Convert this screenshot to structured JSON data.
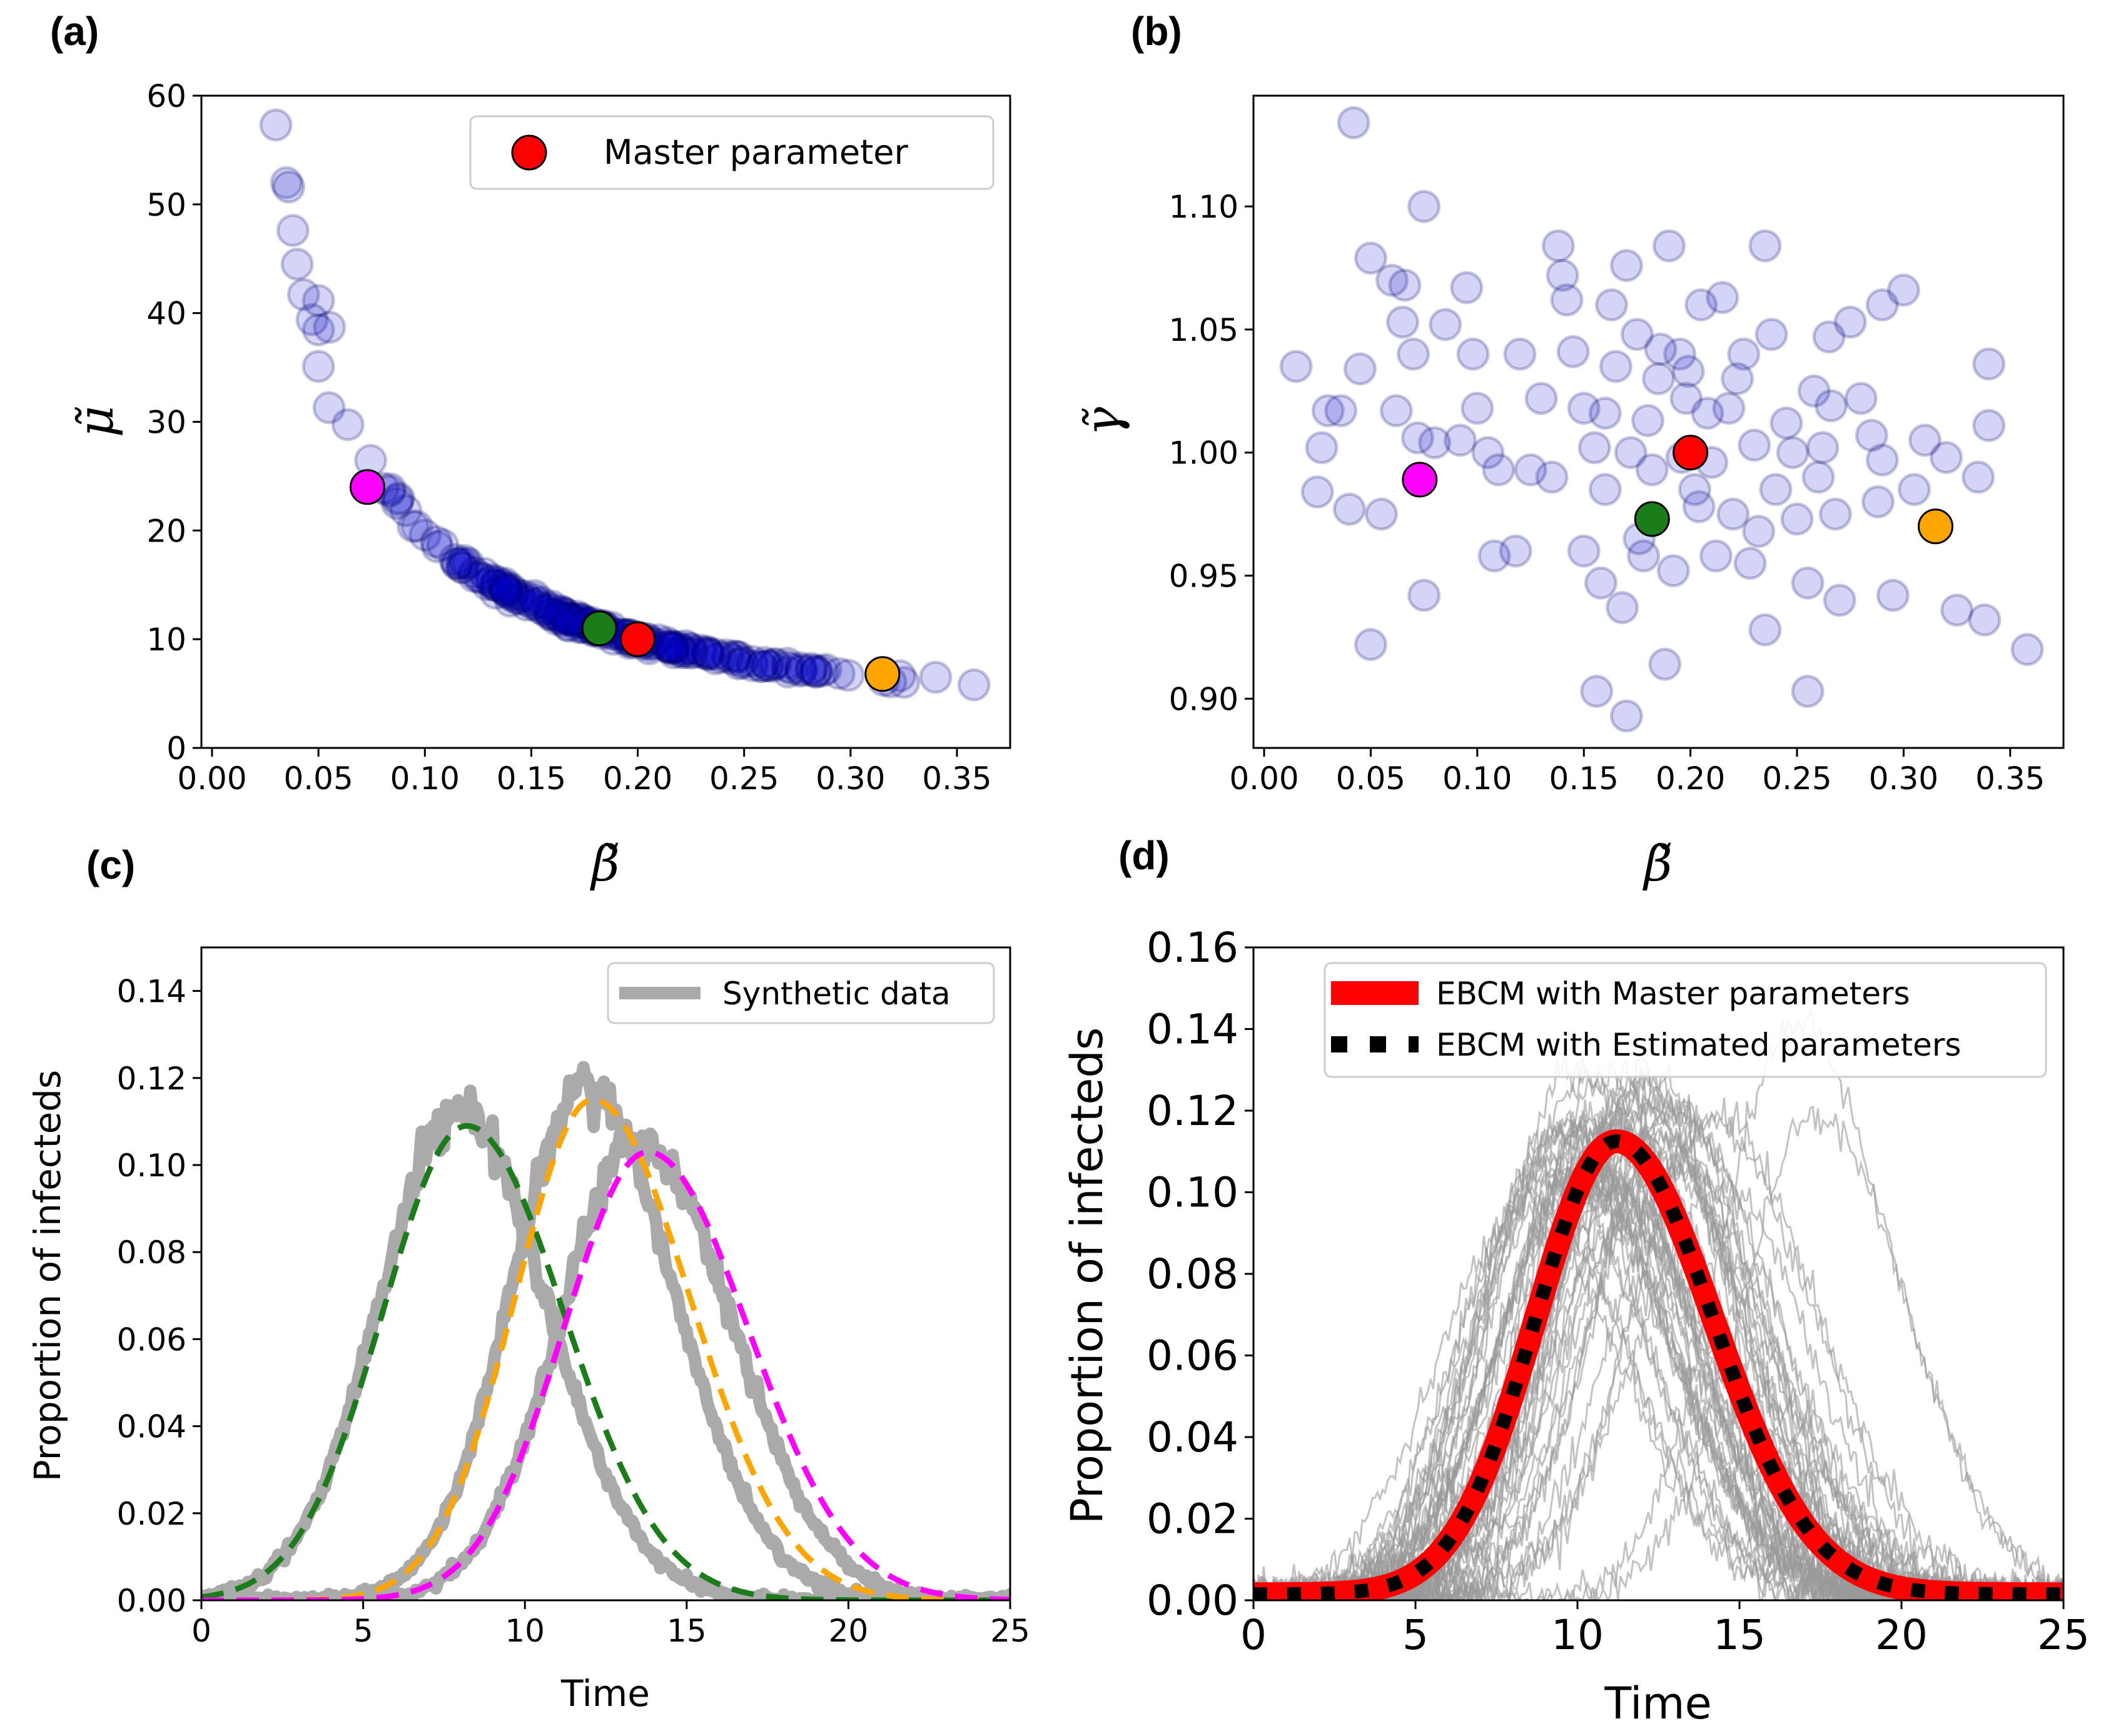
{
  "chart_data": [
    {
      "panel": "(a)",
      "type": "scatter",
      "xlabel": "β̃",
      "ylabel": "μ̃",
      "xlim": [
        -0.005,
        0.375
      ],
      "ylim": [
        0,
        60
      ],
      "xticks": [
        "0.00",
        "0.05",
        "0.10",
        "0.15",
        "0.20",
        "0.25",
        "0.30",
        "0.35"
      ],
      "yticks": [
        "0",
        "10",
        "20",
        "30",
        "40",
        "50",
        "60"
      ],
      "legend": [
        "Master parameter"
      ],
      "point_color": "#0000cc",
      "highlight": [
        {
          "name": "magenta",
          "x": 0.073,
          "y": 24.0,
          "color": "#ff00ff"
        },
        {
          "name": "green",
          "x": 0.182,
          "y": 11.0,
          "color": "#1a7d1a"
        },
        {
          "name": "red",
          "x": 0.2,
          "y": 10.0,
          "color": "#ff0000"
        },
        {
          "name": "orange",
          "x": 0.315,
          "y": 6.8,
          "color": "#ffa500"
        }
      ],
      "extreme_points": [
        {
          "x": 0.03,
          "y": 57.3
        },
        {
          "x": 0.035,
          "y": 52.0
        },
        {
          "x": 0.036,
          "y": 51.6
        },
        {
          "x": 0.038,
          "y": 47.6
        },
        {
          "x": 0.04,
          "y": 44.5
        },
        {
          "x": 0.043,
          "y": 41.7
        },
        {
          "x": 0.047,
          "y": 39.4
        },
        {
          "x": 0.05,
          "y": 35.1
        },
        {
          "x": 0.055,
          "y": 31.3
        },
        {
          "x": 0.34,
          "y": 6.5
        },
        {
          "x": 0.358,
          "y": 5.8
        }
      ],
      "trend": "mu ≈ 2.0 / beta"
    },
    {
      "panel": "(b)",
      "type": "scatter",
      "xlabel": "β̃",
      "ylabel": "γ̃",
      "xlim": [
        -0.005,
        0.375
      ],
      "ylim": [
        0.88,
        1.145
      ],
      "xticks": [
        "0.00",
        "0.05",
        "0.10",
        "0.15",
        "0.20",
        "0.25",
        "0.30",
        "0.35"
      ],
      "yticks": [
        "0.90",
        "0.95",
        "1.00",
        "1.05",
        "1.10"
      ],
      "point_color": "#0000cc",
      "highlight": [
        {
          "name": "magenta",
          "x": 0.073,
          "y": 0.989,
          "color": "#ff00ff"
        },
        {
          "name": "green",
          "x": 0.182,
          "y": 0.973,
          "color": "#1a7d1a"
        },
        {
          "name": "red",
          "x": 0.2,
          "y": 1.0,
          "color": "#ff0000"
        },
        {
          "name": "orange",
          "x": 0.315,
          "y": 0.97,
          "color": "#ffa500"
        }
      ],
      "points": [
        [
          0.042,
          1.134
        ],
        [
          0.075,
          1.1
        ],
        [
          0.015,
          1.035
        ],
        [
          0.025,
          0.984
        ],
        [
          0.027,
          1.002
        ],
        [
          0.03,
          1.017
        ],
        [
          0.04,
          0.977
        ],
        [
          0.045,
          1.034
        ],
        [
          0.05,
          1.079
        ],
        [
          0.055,
          0.975
        ],
        [
          0.06,
          1.07
        ],
        [
          0.065,
          1.053
        ],
        [
          0.066,
          1.068
        ],
        [
          0.07,
          1.04
        ],
        [
          0.072,
          1.006
        ],
        [
          0.075,
          0.942
        ],
        [
          0.05,
          0.922
        ],
        [
          0.085,
          1.052
        ],
        [
          0.095,
          1.067
        ],
        [
          0.098,
          1.04
        ],
        [
          0.1,
          1.018
        ],
        [
          0.105,
          1.0
        ],
        [
          0.11,
          0.993
        ],
        [
          0.12,
          1.04
        ],
        [
          0.125,
          0.993
        ],
        [
          0.13,
          1.022
        ],
        [
          0.135,
          0.99
        ],
        [
          0.138,
          1.084
        ],
        [
          0.14,
          1.072
        ],
        [
          0.145,
          1.041
        ],
        [
          0.15,
          1.018
        ],
        [
          0.15,
          0.96
        ],
        [
          0.155,
          1.002
        ],
        [
          0.158,
          0.947
        ],
        [
          0.16,
          0.985
        ],
        [
          0.163,
          1.06
        ],
        [
          0.165,
          1.035
        ],
        [
          0.168,
          0.937
        ],
        [
          0.17,
          1.076
        ],
        [
          0.172,
          1.0
        ],
        [
          0.175,
          1.048
        ],
        [
          0.178,
          0.958
        ],
        [
          0.18,
          1.013
        ],
        [
          0.185,
          1.03
        ],
        [
          0.188,
          0.914
        ],
        [
          0.19,
          1.084
        ],
        [
          0.192,
          0.952
        ],
        [
          0.195,
          1.04
        ],
        [
          0.198,
          1.022
        ],
        [
          0.202,
          0.985
        ],
        [
          0.205,
          1.06
        ],
        [
          0.21,
          0.996
        ],
        [
          0.212,
          0.958
        ],
        [
          0.215,
          1.063
        ],
        [
          0.218,
          1.018
        ],
        [
          0.22,
          0.975
        ],
        [
          0.225,
          1.04
        ],
        [
          0.228,
          0.955
        ],
        [
          0.23,
          1.003
        ],
        [
          0.235,
          1.084
        ],
        [
          0.235,
          0.928
        ],
        [
          0.24,
          0.985
        ],
        [
          0.245,
          1.012
        ],
        [
          0.25,
          0.973
        ],
        [
          0.255,
          0.947
        ],
        [
          0.255,
          0.903
        ],
        [
          0.258,
          1.025
        ],
        [
          0.26,
          0.99
        ],
        [
          0.262,
          1.002
        ],
        [
          0.265,
          1.047
        ],
        [
          0.268,
          0.975
        ],
        [
          0.27,
          0.94
        ],
        [
          0.275,
          1.053
        ],
        [
          0.28,
          1.022
        ],
        [
          0.285,
          1.007
        ],
        [
          0.288,
          0.98
        ],
        [
          0.29,
          1.06
        ],
        [
          0.295,
          0.942
        ],
        [
          0.3,
          1.066
        ],
        [
          0.305,
          0.985
        ],
        [
          0.31,
          1.005
        ],
        [
          0.32,
          0.998
        ],
        [
          0.325,
          0.936
        ],
        [
          0.335,
          0.99
        ],
        [
          0.338,
          0.932
        ],
        [
          0.34,
          1.036
        ],
        [
          0.34,
          1.011
        ],
        [
          0.358,
          0.92
        ],
        [
          0.156,
          0.903
        ],
        [
          0.17,
          0.893
        ],
        [
          0.142,
          1.062
        ],
        [
          0.186,
          1.042
        ],
        [
          0.199,
          1.033
        ],
        [
          0.208,
          1.016
        ],
        [
          0.108,
          0.958
        ],
        [
          0.118,
          0.96
        ],
        [
          0.16,
          1.016
        ],
        [
          0.176,
          0.965
        ],
        [
          0.182,
          0.993
        ],
        [
          0.196,
          0.998
        ],
        [
          0.204,
          0.978
        ],
        [
          0.222,
          1.03
        ],
        [
          0.232,
          0.968
        ],
        [
          0.238,
          1.048
        ],
        [
          0.248,
          1.0
        ],
        [
          0.266,
          1.019
        ],
        [
          0.29,
          0.997
        ],
        [
          0.092,
          1.005
        ],
        [
          0.08,
          1.004
        ],
        [
          0.062,
          1.017
        ],
        [
          0.036,
          1.017
        ]
      ]
    },
    {
      "panel": "(c)",
      "type": "line",
      "xlabel": "Time",
      "ylabel": "Proportion of infecteds",
      "xlim": [
        0,
        25
      ],
      "ylim": [
        0,
        0.15
      ],
      "xticks": [
        "0",
        "5",
        "10",
        "15",
        "20",
        "25"
      ],
      "yticks": [
        "0.00",
        "0.02",
        "0.04",
        "0.06",
        "0.08",
        "0.10",
        "0.12",
        "0.14"
      ],
      "legend": [
        "Synthetic data"
      ],
      "series": [
        {
          "name": "green",
          "color": "#1a7d1a",
          "peak_time": 8.2,
          "peak": 0.109,
          "width_left": 2.6,
          "width_right": 3.0
        },
        {
          "name": "orange",
          "color": "#ffa500",
          "peak_time": 12.1,
          "peak": 0.115,
          "width_left": 2.4,
          "width_right": 3.0
        },
        {
          "name": "magenta",
          "color": "#ff00ff",
          "peak_time": 13.8,
          "peak": 0.103,
          "width_left": 2.6,
          "width_right": 3.1
        }
      ]
    },
    {
      "panel": "(d)",
      "type": "line",
      "xlabel": "Time",
      "ylabel": "Proportion of infecteds",
      "xlim": [
        0,
        25
      ],
      "ylim": [
        0,
        0.16
      ],
      "xticks": [
        "0",
        "5",
        "10",
        "15",
        "20",
        "25"
      ],
      "yticks": [
        "0.00",
        "0.02",
        "0.04",
        "0.06",
        "0.08",
        "0.10",
        "0.12",
        "0.14",
        "0.16"
      ],
      "legend": [
        "EBCM with Master parameters",
        "EBCM with Estimated parameters"
      ],
      "series": [
        {
          "name": "EBCM with Master parameters",
          "color": "#ff0000",
          "peak_time": 11.2,
          "peak": 0.111,
          "width_left": 2.5,
          "width_right": 3.0
        },
        {
          "name": "EBCM with Estimated parameters",
          "color": "#000000",
          "peak_time": 11.2,
          "peak": 0.111,
          "width_left": 2.5,
          "width_right": 3.0
        }
      ],
      "background_runs_color": "#999999"
    }
  ]
}
